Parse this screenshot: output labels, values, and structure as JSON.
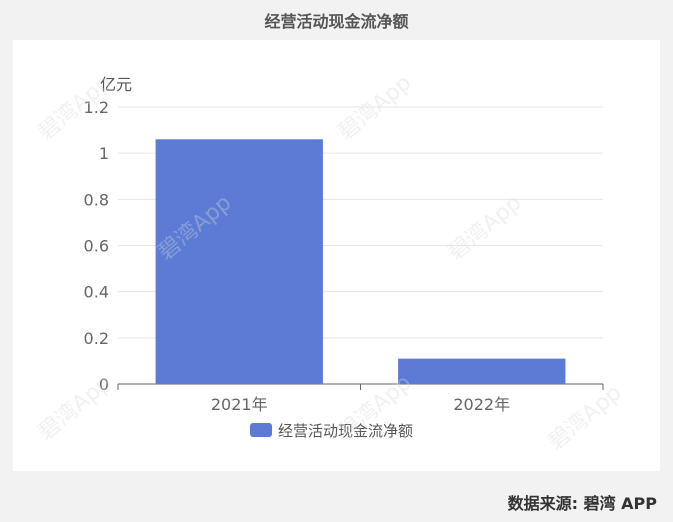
{
  "title": "经营活动现金流净额",
  "source": "数据来源: 碧湾 APP",
  "watermark": "碧湾App",
  "colors": {
    "bar": "#5b7bd5",
    "grid": "#e6e6e6",
    "axis": "#666666"
  },
  "chart_data": {
    "type": "bar",
    "title": "经营活动现金流净额",
    "xlabel": "",
    "ylabel": "亿元",
    "categories": [
      "2021年",
      "2022年"
    ],
    "series": [
      {
        "name": "经营活动现金流净额",
        "values": [
          1.06,
          0.11
        ]
      }
    ],
    "ylim": [
      0,
      1.2
    ],
    "yticks": [
      0,
      0.2,
      0.4,
      0.6,
      0.8,
      1,
      1.2
    ],
    "ytick_labels": [
      "0",
      "0.2",
      "0.4",
      "0.6",
      "0.8",
      "1",
      "1.2"
    ],
    "grid": true,
    "legend": "bottom"
  }
}
